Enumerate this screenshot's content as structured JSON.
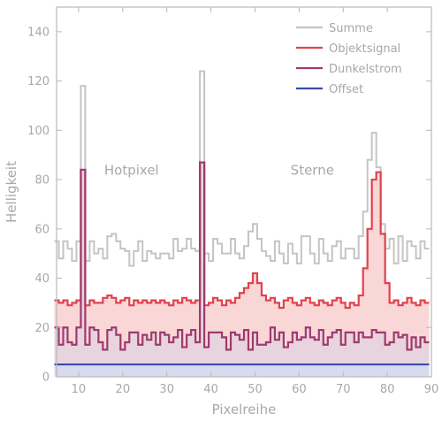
{
  "chart_data": {
    "type": "line",
    "xlabel": "Pixelreihe",
    "ylabel": "Helligkeit",
    "xlim": [
      5,
      90
    ],
    "ylim": [
      0,
      150
    ],
    "xticks": [
      10,
      20,
      30,
      40,
      50,
      60,
      70,
      80,
      90
    ],
    "yticks": [
      0,
      20,
      40,
      60,
      80,
      100,
      120,
      140
    ],
    "grid": false,
    "legend_position": "top-right",
    "annotations": [
      {
        "text": "Hotpixel",
        "x": 22,
        "y": 82
      },
      {
        "text": "Sterne",
        "x": 63,
        "y": 82
      }
    ],
    "x": [
      5,
      6,
      7,
      8,
      9,
      10,
      11,
      12,
      13,
      14,
      15,
      16,
      17,
      18,
      19,
      20,
      21,
      22,
      23,
      24,
      25,
      26,
      27,
      28,
      29,
      30,
      31,
      32,
      33,
      34,
      35,
      36,
      37,
      38,
      39,
      40,
      41,
      42,
      43,
      44,
      45,
      46,
      47,
      48,
      49,
      50,
      51,
      52,
      53,
      54,
      55,
      56,
      57,
      58,
      59,
      60,
      61,
      62,
      63,
      64,
      65,
      66,
      67,
      68,
      69,
      70,
      71,
      72,
      73,
      74,
      75,
      76,
      77,
      78,
      79,
      80,
      81,
      82,
      83,
      84,
      85,
      86,
      87,
      88,
      89
    ],
    "series": [
      {
        "name": "Summe",
        "color": "#c4c4c4",
        "values": [
          55,
          48,
          55,
          52,
          47,
          55,
          118,
          47,
          55,
          50,
          52,
          48,
          57,
          58,
          55,
          52,
          51,
          45,
          51,
          55,
          47,
          51,
          50,
          48,
          50,
          50,
          48,
          56,
          51,
          52,
          56,
          52,
          51,
          124,
          50,
          47,
          56,
          54,
          50,
          50,
          56,
          50,
          48,
          53,
          59,
          62,
          56,
          51,
          49,
          47,
          55,
          50,
          46,
          54,
          50,
          46,
          57,
          57,
          50,
          46,
          56,
          50,
          47,
          53,
          55,
          48,
          52,
          52,
          48,
          57,
          67,
          88,
          99,
          85,
          62,
          52,
          56,
          46,
          57,
          47,
          55,
          53,
          48,
          55,
          52
        ]
      },
      {
        "name": "Objektsignal",
        "color": "#e0424d",
        "values": [
          31,
          30,
          31,
          29,
          30,
          31,
          84,
          29,
          31,
          30,
          30,
          32,
          33,
          32,
          30,
          31,
          32,
          29,
          31,
          30,
          31,
          30,
          31,
          30,
          31,
          30,
          29,
          31,
          30,
          32,
          31,
          30,
          31,
          87,
          29,
          30,
          32,
          31,
          29,
          31,
          30,
          32,
          34,
          36,
          38,
          42,
          38,
          33,
          31,
          32,
          30,
          28,
          31,
          32,
          30,
          29,
          31,
          32,
          30,
          29,
          31,
          30,
          29,
          31,
          32,
          30,
          28,
          30,
          29,
          33,
          44,
          60,
          80,
          83,
          58,
          38,
          30,
          31,
          29,
          30,
          32,
          30,
          29,
          31,
          30
        ]
      },
      {
        "name": "Dunkelstrom",
        "color": "#9e3a6e",
        "values": [
          20,
          13,
          20,
          14,
          13,
          20,
          84,
          13,
          20,
          19,
          14,
          11,
          19,
          20,
          17,
          11,
          14,
          18,
          18,
          13,
          17,
          15,
          18,
          13,
          18,
          17,
          14,
          16,
          19,
          12,
          17,
          19,
          14,
          87,
          12,
          18,
          18,
          18,
          16,
          11,
          18,
          17,
          15,
          19,
          11,
          18,
          13,
          13,
          14,
          20,
          15,
          18,
          12,
          14,
          18,
          15,
          16,
          20,
          16,
          15,
          19,
          13,
          16,
          18,
          19,
          13,
          18,
          18,
          14,
          18,
          16,
          16,
          19,
          18,
          18,
          13,
          14,
          18,
          16,
          17,
          11,
          16,
          12,
          16,
          14
        ]
      },
      {
        "name": "Offset",
        "color": "#3b4aa8",
        "values": [
          5,
          5,
          5,
          5,
          5,
          5,
          5,
          5,
          5,
          5,
          5,
          5,
          5,
          5,
          5,
          5,
          5,
          5,
          5,
          5,
          5,
          5,
          5,
          5,
          5,
          5,
          5,
          5,
          5,
          5,
          5,
          5,
          5,
          5,
          5,
          5,
          5,
          5,
          5,
          5,
          5,
          5,
          5,
          5,
          5,
          5,
          5,
          5,
          5,
          5,
          5,
          5,
          5,
          5,
          5,
          5,
          5,
          5,
          5,
          5,
          5,
          5,
          5,
          5,
          5,
          5,
          5,
          5,
          5,
          5,
          5,
          5,
          5,
          5,
          5,
          5,
          5,
          5,
          5,
          5,
          5,
          5,
          5,
          5,
          5
        ]
      }
    ]
  }
}
